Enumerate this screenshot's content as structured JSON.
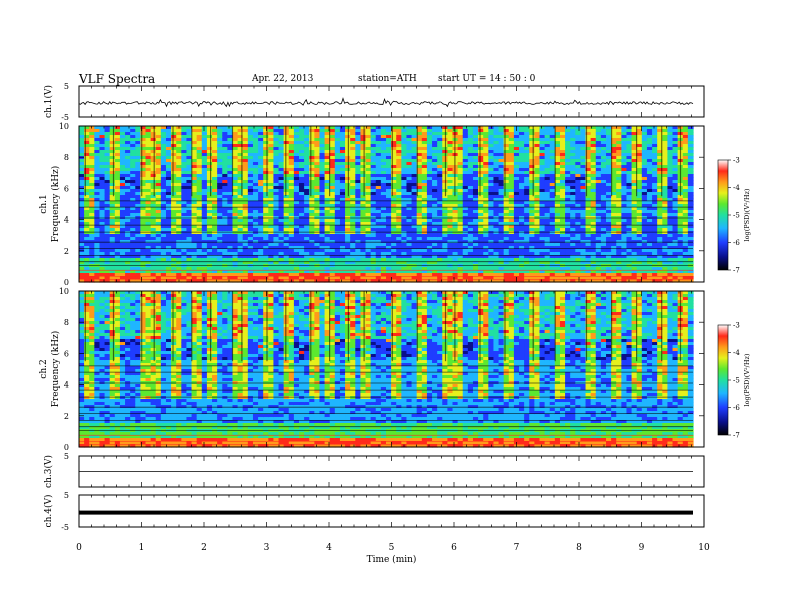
{
  "header": {
    "title": "VLF  Spectra",
    "date": "Apr. 22, 2013",
    "station": "station=ATH",
    "start": "start  UT  =  14 : 50 : 0"
  },
  "chart_data": [
    {
      "type": "line",
      "panel": "ch.1 waveform",
      "ylabel": "ch.1(V)",
      "ylim": [
        -5,
        5
      ],
      "y_ticks": [
        "5",
        "-5"
      ],
      "xlim": [
        0,
        10
      ],
      "baseline": -0.5,
      "noise_amplitude": 0.45,
      "grid": false
    },
    {
      "type": "heatmap",
      "panel": "ch.1 spectrogram",
      "ylabel_channel": "ch.1",
      "ylabel": "Frequency  (kHz)",
      "ylim": [
        0,
        10
      ],
      "y_ticks": [
        "0",
        "2",
        "4",
        "6",
        "8",
        "10"
      ],
      "xlim": [
        0,
        9.8
      ],
      "colorbar": {
        "label": "log(PSD)(V²/Hz)",
        "range": [
          -7,
          -3
        ],
        "ticks": [
          "-3",
          "-4",
          "-5",
          "-6",
          "-7"
        ],
        "colors": [
          "#000000",
          "#0a0f8c",
          "#1f3dff",
          "#1fb6ff",
          "#21e0a0",
          "#5ce830",
          "#e6f01c",
          "#ff9a1a",
          "#ff2a1a",
          "#ffffff"
        ]
      },
      "description_bands_khz": {
        "strong_low": [
          0,
          0.6
        ],
        "moderate": [
          0.6,
          5.5
        ],
        "weak": [
          5.5,
          10
        ]
      },
      "impulsive_events_min": [
        0.1,
        0.55,
        1.0,
        1.2,
        1.5,
        1.8,
        2.1,
        2.45,
        2.6,
        3.0,
        3.3,
        3.7,
        4.0,
        4.3,
        4.55,
        5.0,
        5.4,
        5.85,
        6.0,
        6.4,
        6.8,
        7.25,
        7.6,
        8.1,
        8.5,
        8.9,
        9.3,
        9.6
      ]
    },
    {
      "type": "heatmap",
      "panel": "ch.2 spectrogram",
      "ylabel_channel": "ch.2",
      "ylabel": "Frequency  (kHz)",
      "ylim": [
        0,
        10
      ],
      "y_ticks": [
        "0",
        "2",
        "4",
        "6",
        "8",
        "10"
      ],
      "xlim": [
        0,
        9.8
      ],
      "colorbar": {
        "label": "log(PSD)(V²/Hz)",
        "range": [
          -7,
          -3
        ],
        "ticks": [
          "-3",
          "-4",
          "-5",
          "-6",
          "-7"
        ]
      }
    },
    {
      "type": "line",
      "panel": "ch.3 waveform",
      "ylabel": "ch.3(V)",
      "ylim": [
        -5,
        5
      ],
      "y_ticks": [
        "5"
      ],
      "xlim": [
        0,
        9.8
      ],
      "baseline": 0
    },
    {
      "type": "line",
      "panel": "ch.4 waveform",
      "ylabel": "ch.4(V)",
      "ylim": [
        -5,
        5
      ],
      "y_ticks": [
        "5",
        "-5"
      ],
      "xlim": [
        0,
        9.8
      ],
      "baseline": -0.5,
      "xlabel": "Time  (min)",
      "x_ticks": [
        "0",
        "1",
        "2",
        "3",
        "4",
        "5",
        "6",
        "7",
        "8",
        "9",
        "10"
      ]
    }
  ]
}
